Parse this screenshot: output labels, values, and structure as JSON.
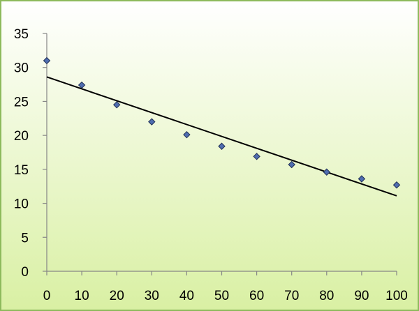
{
  "chart_data": {
    "type": "scatter",
    "x": [
      0,
      10,
      20,
      30,
      40,
      50,
      60,
      70,
      80,
      90,
      100
    ],
    "y": [
      31,
      27.4,
      24.5,
      22,
      20.1,
      18.4,
      16.9,
      15.7,
      14.6,
      13.6,
      12.7
    ],
    "trendline": {
      "type": "linear",
      "x": [
        0,
        100
      ],
      "y": [
        28.6,
        11.1
      ]
    },
    "xlim": [
      0,
      100
    ],
    "ylim": [
      0,
      35
    ],
    "x_ticks": [
      "0",
      "10",
      "20",
      "30",
      "40",
      "50",
      "60",
      "70",
      "80",
      "90",
      "100"
    ],
    "y_ticks": [
      "0",
      "5",
      "10",
      "15",
      "20",
      "25",
      "30",
      "35"
    ],
    "grid": false,
    "legend": "none",
    "colors": {
      "background_top": "#ffffff",
      "background_bottom": "#d9f0a3",
      "border": "#8dba5c",
      "marker_fill": "#4f6db0",
      "trendline": "#000000"
    }
  }
}
